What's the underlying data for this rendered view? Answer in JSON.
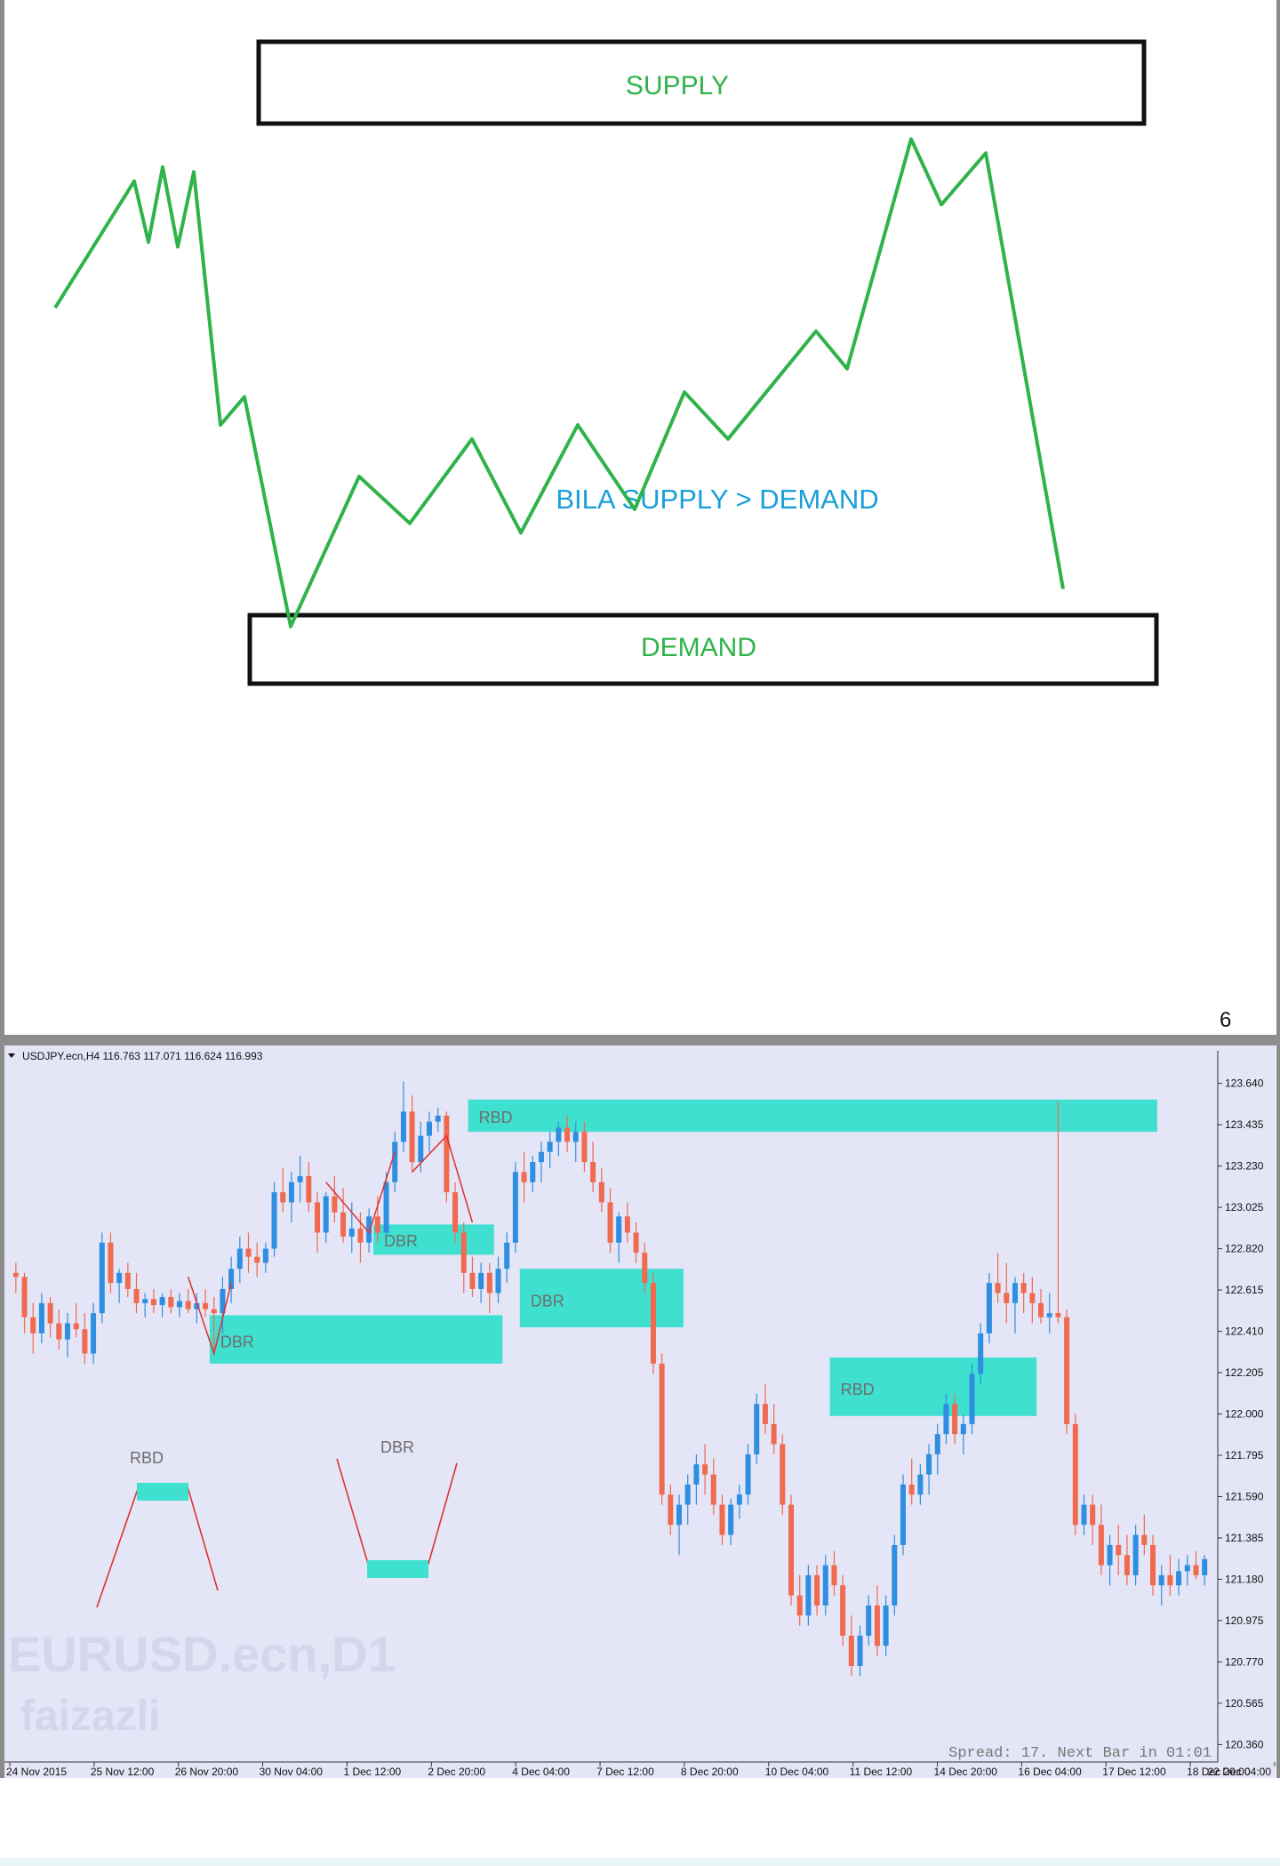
{
  "page_number": "6",
  "colors": {
    "diagram_line": "#2fb34a",
    "diagram_label": "#2fb34a",
    "caption": "#1a9fd8",
    "chart_bg": "#e4e5f6",
    "bull_candle": "#2e8ee0",
    "bear_candle": "#f06a4f",
    "zone": "#3fe0d0",
    "zone_label": "#6e6e6e",
    "sketch_line": "#e03030"
  },
  "diagram": {
    "supply_label": "SUPPLY",
    "demand_label": "DEMAND",
    "caption": "BILA SUPPLY > DEMAND"
  },
  "chart_data": [
    {
      "type": "line",
      "x": [
        0,
        1,
        2,
        3,
        4,
        5,
        6,
        7,
        8,
        9,
        10,
        11,
        12,
        13,
        14,
        15,
        16,
        17,
        18,
        19,
        20,
        21,
        22,
        23
      ],
      "values": [
        0.64,
        0.91,
        0.78,
        0.94,
        0.77,
        0.93,
        0.39,
        0.45,
        -0.04,
        0.28,
        0.18,
        0.36,
        0.16,
        0.39,
        0.21,
        0.46,
        0.36,
        0.59,
        0.51,
        1.0,
        0.86,
        0.97,
        0.04,
        0.04
      ],
      "title": "",
      "xlabel": "",
      "ylabel": "",
      "ylim": [
        -0.05,
        1.05
      ],
      "zones": [
        {
          "label": "SUPPLY",
          "position": "top"
        },
        {
          "label": "DEMAND",
          "position": "bottom"
        }
      ],
      "annotations": [
        "BILA SUPPLY > DEMAND"
      ]
    },
    {
      "type": "candlestick",
      "title": "USDJPY.ecn,H4  116.763 117.071 116.624 116.993",
      "y_ticks": [
        "123.640",
        "123.435",
        "123.230",
        "123.025",
        "122.820",
        "122.615",
        "122.410",
        "122.205",
        "122.000",
        "121.795",
        "121.590",
        "121.385",
        "121.180",
        "120.975",
        "120.770",
        "120.565",
        "120.360"
      ],
      "ylim": [
        120.3,
        123.74
      ],
      "x_ticks": [
        "24 Nov 2015",
        "25 Nov 12:00",
        "26 Nov 20:00",
        "30 Nov 04:00",
        "1 Dec 12:00",
        "2 Dec 20:00",
        "4 Dec 04:00",
        "7 Dec 12:00",
        "8 Dec 20:00",
        "10 Dec 04:00",
        "11 Dec 12:00",
        "14 Dec 20:00",
        "16 Dec 04:00",
        "17 Dec 12:00",
        "18 Dec 20:00",
        "22 Dec 04:00"
      ],
      "status_text": "Spread: 17. Next Bar in 01:01",
      "watermark": [
        "EURUSD.ecn,D1",
        "faizazli"
      ],
      "zones": [
        {
          "label": "DBR",
          "x0": 23,
          "x1": 57,
          "y_top": 122.49,
          "y_bottom": 122.25
        },
        {
          "label": "DBR",
          "x0": 42,
          "x1": 56,
          "y_top": 122.94,
          "y_bottom": 122.79
        },
        {
          "label": "RBD",
          "x0": 53,
          "x1": 133,
          "y_top": 123.56,
          "y_bottom": 123.4
        },
        {
          "label": "DBR",
          "x0": 59,
          "x1": 78,
          "y_top": 122.72,
          "y_bottom": 122.43
        },
        {
          "label": "RBD",
          "x0": 95,
          "x1": 119,
          "y_top": 122.28,
          "y_bottom": 121.99
        }
      ],
      "legend_sketches": [
        "RBD",
        "DBR"
      ],
      "candles": [
        [
          0,
          122.7,
          122.75,
          122.6,
          122.68
        ],
        [
          1,
          122.68,
          122.7,
          122.4,
          122.48
        ],
        [
          2,
          122.48,
          122.55,
          122.3,
          122.4
        ],
        [
          3,
          122.4,
          122.6,
          122.35,
          122.55
        ],
        [
          4,
          122.55,
          122.58,
          122.38,
          122.45
        ],
        [
          5,
          122.45,
          122.52,
          122.32,
          122.37
        ],
        [
          6,
          122.37,
          122.5,
          122.28,
          122.45
        ],
        [
          7,
          122.45,
          122.55,
          122.38,
          122.42
        ],
        [
          8,
          122.42,
          122.5,
          122.25,
          122.3
        ],
        [
          9,
          122.3,
          122.55,
          122.25,
          122.5
        ],
        [
          10,
          122.5,
          122.9,
          122.45,
          122.85
        ],
        [
          11,
          122.85,
          122.9,
          122.6,
          122.65
        ],
        [
          12,
          122.65,
          122.72,
          122.55,
          122.7
        ],
        [
          13,
          122.7,
          122.75,
          122.58,
          122.62
        ],
        [
          14,
          122.62,
          122.7,
          122.5,
          122.55
        ],
        [
          15,
          122.55,
          122.6,
          122.48,
          122.57
        ],
        [
          16,
          122.57,
          122.62,
          122.5,
          122.54
        ],
        [
          17,
          122.54,
          122.6,
          122.48,
          122.58
        ],
        [
          18,
          122.58,
          122.62,
          122.5,
          122.53
        ],
        [
          19,
          122.53,
          122.6,
          122.48,
          122.56
        ],
        [
          20,
          122.56,
          122.62,
          122.5,
          122.52
        ],
        [
          21,
          122.52,
          122.6,
          122.45,
          122.55
        ],
        [
          22,
          122.55,
          122.62,
          122.48,
          122.52
        ],
        [
          23,
          122.52,
          122.58,
          122.3,
          122.5
        ],
        [
          24,
          122.5,
          122.68,
          122.4,
          122.62
        ],
        [
          25,
          122.62,
          122.78,
          122.55,
          122.72
        ],
        [
          26,
          122.72,
          122.88,
          122.65,
          122.82
        ],
        [
          27,
          122.82,
          122.9,
          122.7,
          122.78
        ],
        [
          28,
          122.78,
          122.85,
          122.68,
          122.75
        ],
        [
          29,
          122.75,
          122.85,
          122.7,
          122.82
        ],
        [
          30,
          122.82,
          123.15,
          122.78,
          123.1
        ],
        [
          31,
          123.1,
          123.22,
          123.0,
          123.05
        ],
        [
          32,
          123.05,
          123.2,
          122.95,
          123.15
        ],
        [
          33,
          123.15,
          123.28,
          123.05,
          123.18
        ],
        [
          34,
          123.18,
          123.25,
          123.0,
          123.05
        ],
        [
          35,
          123.05,
          123.1,
          122.8,
          122.9
        ],
        [
          36,
          122.9,
          123.1,
          122.85,
          123.08
        ],
        [
          37,
          123.08,
          123.18,
          122.95,
          123.0
        ],
        [
          38,
          123.0,
          123.12,
          122.85,
          122.88
        ],
        [
          39,
          122.88,
          123.05,
          122.8,
          122.92
        ],
        [
          40,
          122.92,
          123.0,
          122.75,
          122.85
        ],
        [
          41,
          122.85,
          123.02,
          122.8,
          122.98
        ],
        [
          42,
          122.98,
          123.08,
          122.85,
          122.9
        ],
        [
          43,
          122.9,
          123.2,
          122.88,
          123.15
        ],
        [
          44,
          123.15,
          123.4,
          123.1,
          123.35
        ],
        [
          45,
          123.35,
          123.65,
          123.3,
          123.5
        ],
        [
          46,
          123.5,
          123.58,
          123.2,
          123.25
        ],
        [
          47,
          123.25,
          123.45,
          123.2,
          123.38
        ],
        [
          48,
          123.38,
          123.5,
          123.3,
          123.45
        ],
        [
          49,
          123.45,
          123.52,
          123.4,
          123.48
        ],
        [
          50,
          123.48,
          123.5,
          123.05,
          123.1
        ],
        [
          51,
          123.1,
          123.15,
          122.85,
          122.9
        ],
        [
          52,
          122.9,
          122.95,
          122.6,
          122.7
        ],
        [
          53,
          122.7,
          122.78,
          122.58,
          122.62
        ],
        [
          54,
          122.62,
          122.75,
          122.55,
          122.7
        ],
        [
          55,
          122.7,
          122.75,
          122.5,
          122.6
        ],
        [
          56,
          122.6,
          122.78,
          122.55,
          122.72
        ],
        [
          57,
          122.72,
          122.9,
          122.65,
          122.85
        ],
        [
          58,
          122.85,
          123.25,
          122.8,
          123.2
        ],
        [
          59,
          123.2,
          123.3,
          123.05,
          123.15
        ],
        [
          60,
          123.15,
          123.28,
          123.1,
          123.25
        ],
        [
          61,
          123.25,
          123.35,
          123.15,
          123.3
        ],
        [
          62,
          123.3,
          123.4,
          123.22,
          123.35
        ],
        [
          63,
          123.35,
          123.45,
          123.28,
          123.42
        ],
        [
          64,
          123.42,
          123.48,
          123.3,
          123.35
        ],
        [
          65,
          123.35,
          123.45,
          123.25,
          123.4
        ],
        [
          66,
          123.4,
          123.45,
          123.2,
          123.25
        ],
        [
          67,
          123.25,
          123.35,
          123.1,
          123.15
        ],
        [
          68,
          123.15,
          123.22,
          123.0,
          123.05
        ],
        [
          69,
          123.05,
          123.12,
          122.8,
          122.85
        ],
        [
          70,
          122.85,
          123.0,
          122.75,
          122.98
        ],
        [
          71,
          122.98,
          123.05,
          122.85,
          122.9
        ],
        [
          72,
          122.9,
          122.95,
          122.75,
          122.8
        ],
        [
          73,
          122.8,
          122.85,
          122.6,
          122.65
        ],
        [
          74,
          122.65,
          122.7,
          122.2,
          122.25
        ],
        [
          75,
          122.25,
          122.3,
          121.55,
          121.6
        ],
        [
          76,
          121.6,
          121.65,
          121.4,
          121.45
        ],
        [
          77,
          121.45,
          121.6,
          121.3,
          121.55
        ],
        [
          78,
          121.55,
          121.7,
          121.45,
          121.65
        ],
        [
          79,
          121.65,
          121.8,
          121.55,
          121.75
        ],
        [
          80,
          121.75,
          121.85,
          121.6,
          121.7
        ],
        [
          81,
          121.7,
          121.78,
          121.5,
          121.55
        ],
        [
          82,
          121.55,
          121.6,
          121.35,
          121.4
        ],
        [
          83,
          121.4,
          121.58,
          121.35,
          121.55
        ],
        [
          84,
          121.55,
          121.65,
          121.48,
          121.6
        ],
        [
          85,
          121.6,
          121.85,
          121.55,
          121.8
        ],
        [
          86,
          121.8,
          122.1,
          121.75,
          122.05
        ],
        [
          87,
          122.05,
          122.15,
          121.9,
          121.95
        ],
        [
          88,
          121.95,
          122.05,
          121.8,
          121.85
        ],
        [
          89,
          121.85,
          121.9,
          121.5,
          121.55
        ],
        [
          90,
          121.55,
          121.6,
          121.05,
          121.1
        ],
        [
          91,
          121.1,
          121.2,
          120.95,
          121.0
        ],
        [
          92,
          121.0,
          121.25,
          120.95,
          121.2
        ],
        [
          93,
          121.2,
          121.25,
          121.0,
          121.05
        ],
        [
          94,
          121.05,
          121.3,
          121.0,
          121.25
        ],
        [
          95,
          121.25,
          121.32,
          121.1,
          121.15
        ],
        [
          96,
          121.15,
          121.2,
          120.85,
          120.9
        ],
        [
          97,
          120.9,
          121.0,
          120.7,
          120.75
        ],
        [
          98,
          120.75,
          120.95,
          120.7,
          120.9
        ],
        [
          99,
          120.9,
          121.1,
          120.85,
          121.05
        ],
        [
          100,
          121.05,
          121.15,
          120.8,
          120.85
        ],
        [
          101,
          120.85,
          121.1,
          120.8,
          121.05
        ],
        [
          102,
          121.05,
          121.4,
          121.0,
          121.35
        ],
        [
          103,
          121.35,
          121.7,
          121.3,
          121.65
        ],
        [
          104,
          121.65,
          121.78,
          121.55,
          121.6
        ],
        [
          105,
          121.6,
          121.75,
          121.55,
          121.7
        ],
        [
          106,
          121.7,
          121.85,
          121.6,
          121.8
        ],
        [
          107,
          121.8,
          121.95,
          121.7,
          121.9
        ],
        [
          108,
          121.9,
          122.1,
          121.85,
          122.05
        ],
        [
          109,
          122.05,
          122.1,
          121.85,
          121.9
        ],
        [
          110,
          121.9,
          122.0,
          121.8,
          121.95
        ],
        [
          111,
          121.95,
          122.25,
          121.9,
          122.2
        ],
        [
          112,
          122.2,
          122.45,
          122.15,
          122.4
        ],
        [
          113,
          122.4,
          122.7,
          122.35,
          122.65
        ],
        [
          114,
          122.65,
          122.8,
          122.55,
          122.6
        ],
        [
          115,
          122.6,
          122.75,
          122.45,
          122.55
        ],
        [
          116,
          122.55,
          122.68,
          122.4,
          122.65
        ],
        [
          117,
          122.65,
          122.7,
          122.5,
          122.6
        ],
        [
          118,
          122.6,
          122.68,
          122.45,
          122.55
        ],
        [
          119,
          122.55,
          122.62,
          122.45,
          122.48
        ],
        [
          120,
          122.48,
          122.6,
          122.4,
          122.5
        ],
        [
          121,
          122.5,
          123.55,
          122.45,
          122.48
        ],
        [
          122,
          122.48,
          122.52,
          121.9,
          121.95
        ],
        [
          123,
          121.95,
          122.0,
          121.4,
          121.45
        ],
        [
          124,
          121.45,
          121.6,
          121.4,
          121.55
        ],
        [
          125,
          121.55,
          121.6,
          121.35,
          121.45
        ],
        [
          126,
          121.45,
          121.55,
          121.2,
          121.25
        ],
        [
          127,
          121.25,
          121.4,
          121.15,
          121.35
        ],
        [
          128,
          121.35,
          121.45,
          121.2,
          121.3
        ],
        [
          129,
          121.3,
          121.4,
          121.15,
          121.2
        ],
        [
          130,
          121.2,
          121.45,
          121.15,
          121.4
        ],
        [
          131,
          121.4,
          121.5,
          121.3,
          121.35
        ],
        [
          132,
          121.35,
          121.4,
          121.1,
          121.15
        ],
        [
          133,
          121.15,
          121.25,
          121.05,
          121.2
        ],
        [
          134,
          121.2,
          121.3,
          121.1,
          121.15
        ],
        [
          135,
          121.15,
          121.28,
          121.1,
          121.22
        ],
        [
          136,
          121.22,
          121.3,
          121.15,
          121.25
        ],
        [
          137,
          121.25,
          121.32,
          121.18,
          121.2
        ],
        [
          138,
          121.2,
          121.3,
          121.15,
          121.28
        ]
      ]
    }
  ]
}
